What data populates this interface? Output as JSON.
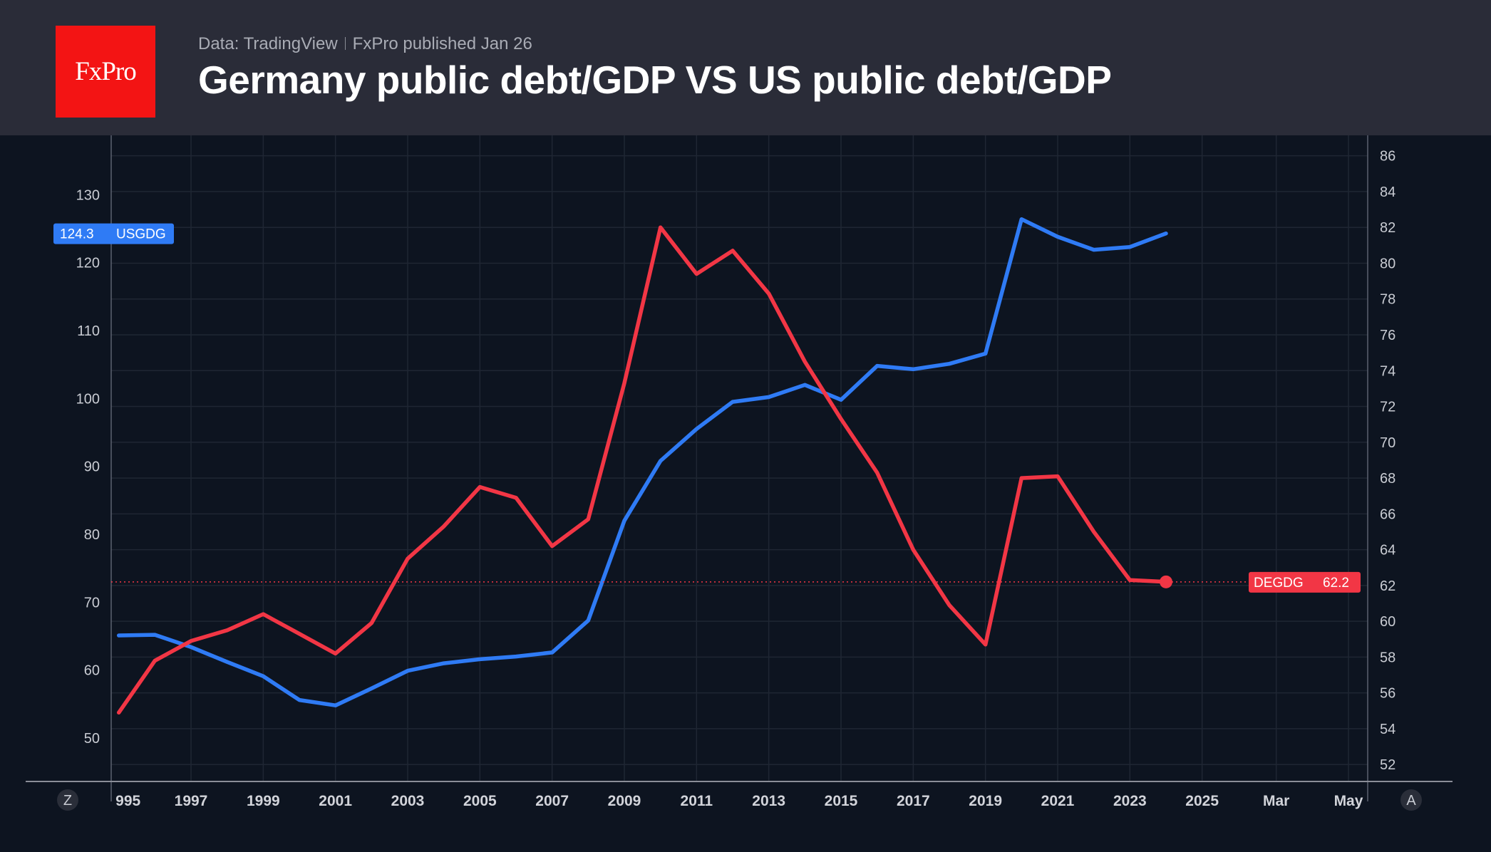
{
  "header": {
    "logo": "FxPro",
    "source": "Data: TradingView",
    "publisher": "FxPro published Jan 26",
    "title": "Germany public debt/GDP VS US public debt/GDP"
  },
  "chart_data": {
    "type": "line",
    "title": "Germany public debt/GDP VS US public debt/GDP",
    "x": [
      1995,
      1996,
      1997,
      1998,
      1999,
      2000,
      2001,
      2002,
      2003,
      2004,
      2005,
      2006,
      2007,
      2008,
      2009,
      2010,
      2011,
      2012,
      2013,
      2014,
      2015,
      2016,
      2017,
      2018,
      2019,
      2020,
      2021,
      2022,
      2023,
      2024
    ],
    "x_tick_labels": [
      "995",
      "1997",
      "1999",
      "2001",
      "2003",
      "2005",
      "2007",
      "2009",
      "2011",
      "2013",
      "2015",
      "2017",
      "2019",
      "2021",
      "2023",
      "2025",
      "Mar",
      "May"
    ],
    "left_axis": {
      "ticks": [
        130,
        120,
        110,
        100,
        90,
        80,
        70,
        60,
        50
      ],
      "range": [
        45,
        135
      ]
    },
    "right_axis": {
      "ticks": [
        86,
        84,
        82,
        80,
        78,
        76,
        74,
        72,
        70,
        68,
        66,
        64,
        62,
        60,
        58,
        56,
        54,
        52
      ],
      "range": [
        51,
        87
      ]
    },
    "grid": true,
    "series": [
      {
        "name": "USGDG",
        "axis": "left",
        "color": "#2f7bf5",
        "last_value": "124.3",
        "values": [
          65.1,
          65.2,
          63.4,
          61.2,
          59.1,
          55.6,
          54.8,
          57.3,
          59.9,
          61.0,
          61.6,
          62.0,
          62.6,
          67.3,
          82.0,
          90.8,
          95.5,
          99.5,
          100.2,
          102.0,
          99.8,
          104.8,
          104.3,
          105.1,
          106.6,
          126.4,
          123.8,
          121.9,
          122.3,
          124.3
        ]
      },
      {
        "name": "DEGDG",
        "axis": "right",
        "color": "#f23645",
        "last_value": "62.2",
        "values": [
          54.9,
          57.8,
          58.9,
          59.5,
          60.4,
          59.3,
          58.2,
          59.9,
          63.5,
          65.3,
          67.5,
          66.9,
          64.2,
          65.7,
          73.3,
          82.0,
          79.4,
          80.7,
          78.3,
          74.5,
          71.3,
          68.3,
          64.0,
          60.9,
          58.7,
          68.0,
          68.1,
          65.0,
          62.3,
          62.2
        ]
      }
    ]
  },
  "controls": {
    "left_button": "Z",
    "right_button": "A"
  }
}
